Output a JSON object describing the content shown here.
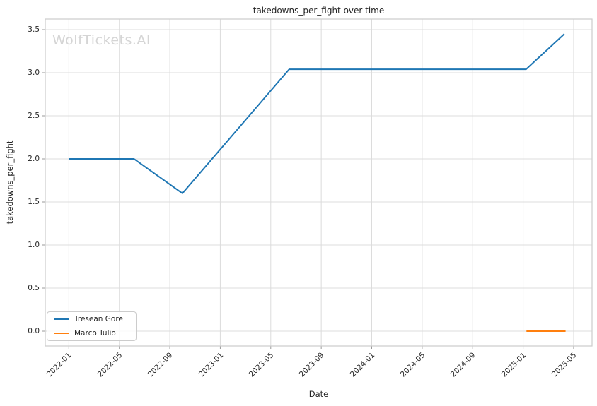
{
  "watermark": "WolfTickets.AI",
  "chart_data": {
    "type": "line",
    "title": "takedowns_per_fight over time",
    "xlabel": "Date",
    "ylabel": "takedowns_per_fight",
    "grid": true,
    "legend_position": "lower left",
    "x_ticks": [
      "2022-01",
      "2022-05",
      "2022-09",
      "2023-01",
      "2023-05",
      "2023-09",
      "2024-01",
      "2024-05",
      "2024-09",
      "2025-01",
      "2025-05"
    ],
    "y_tick_labels": [
      "0.0",
      "0.5",
      "1.0",
      "1.5",
      "2.0",
      "2.5",
      "3.0",
      "3.5"
    ],
    "x_range": [
      "2021-11-05",
      "2025-06-15"
    ],
    "y_range": [
      -0.172,
      3.623
    ],
    "grid_color": "#dcdcdc",
    "spine_color": "#cccccc",
    "series": [
      {
        "name": "Tresean Gore",
        "color": "#1f77b4",
        "points": [
          {
            "date": "2022-01-01",
            "value": 2.0
          },
          {
            "date": "2022-06-06",
            "value": 2.0
          },
          {
            "date": "2022-10-01",
            "value": 1.6
          },
          {
            "date": "2023-06-15",
            "value": 3.04
          },
          {
            "date": "2025-01-08",
            "value": 3.04
          },
          {
            "date": "2025-04-09",
            "value": 3.45
          }
        ]
      },
      {
        "name": "Marco Tulio",
        "color": "#ff7f0e",
        "points": [
          {
            "date": "2025-01-09",
            "value": 0.0
          },
          {
            "date": "2025-04-12",
            "value": 0.0
          }
        ]
      }
    ]
  }
}
